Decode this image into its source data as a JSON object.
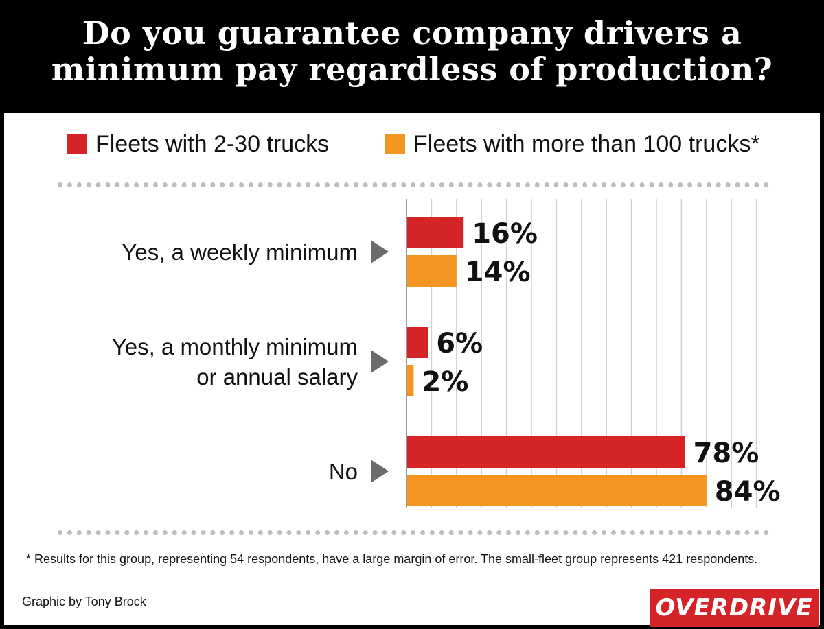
{
  "title_line1": "Do you guarantee company drivers a",
  "title_line2": "minimum pay regardless of production?",
  "footnote": "* Results for this group, representing 54 respondents, have a large margin of error. The small-fleet group represents 421 respondents.",
  "credit": "Graphic by Tony Brock",
  "logo_text": "OVERDRIVE",
  "chart_data": {
    "type": "bar",
    "orientation": "horizontal",
    "categories": [
      [
        "Yes, a weekly minimum"
      ],
      [
        "Yes, a monthly minimum",
        "or annual salary"
      ],
      [
        "No"
      ]
    ],
    "series": [
      {
        "name": "Fleets with 2-30 trucks",
        "color": "#d42428",
        "values": [
          16,
          6,
          78
        ],
        "labels": [
          "16%",
          "6%",
          "78%"
        ]
      },
      {
        "name": "Fleets with more than 100 trucks*",
        "color": "#f49421",
        "values": [
          14,
          2,
          84
        ],
        "labels": [
          "14%",
          "2%",
          "84%"
        ]
      }
    ],
    "xlim": [
      0,
      100
    ],
    "grid": true,
    "legend": "top"
  }
}
